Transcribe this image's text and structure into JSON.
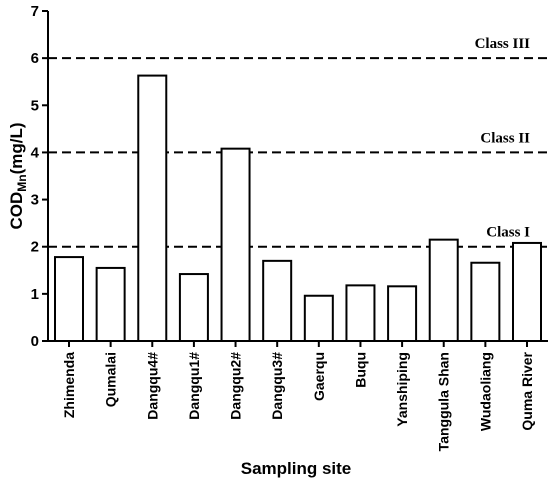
{
  "chart_data": {
    "type": "bar",
    "categories": [
      "Zhimenda",
      "Qumalai",
      "Dangqu4#",
      "Dangqu1#",
      "Dangqu2#",
      "Dangqu3#",
      "Gaerqu",
      "Buqu",
      "Yanshiping",
      "Tanggula Shan",
      "Wudaoliang",
      "Quma River"
    ],
    "values": [
      1.78,
      1.55,
      5.63,
      1.42,
      4.08,
      1.7,
      0.96,
      1.18,
      1.16,
      2.15,
      1.66,
      2.08
    ],
    "xlabel": "Sampling site",
    "ylabel": {
      "main": "COD",
      "sub": "Mn",
      "rest": "(mg/L)"
    },
    "ylim": [
      0,
      7
    ],
    "yticks": [
      0,
      1,
      2,
      3,
      4,
      5,
      6,
      7
    ],
    "grid": false,
    "reference_lines": [
      {
        "value": 6,
        "label": "Class III"
      },
      {
        "value": 4,
        "label": "Class II"
      },
      {
        "value": 2,
        "label": "Class I"
      }
    ]
  }
}
